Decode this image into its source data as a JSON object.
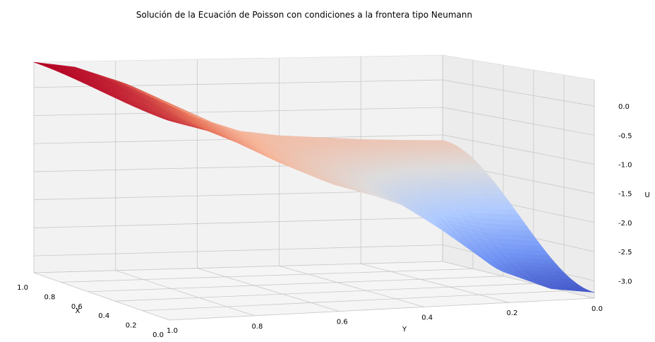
{
  "chart_data": {
    "type": "surface",
    "title": "Solución de la Ecuación de Poisson con condiciones a la frontera tipo Neumann",
    "xlabel": "X",
    "ylabel": "Y",
    "zlabel": "U",
    "x_ticks": [
      "1.0",
      "0.8",
      "0.6",
      "0.4",
      "0.2",
      "0.0"
    ],
    "y_ticks": [
      "1.0",
      "0.8",
      "0.6",
      "0.4",
      "0.2",
      "0.0"
    ],
    "z_ticks": [
      "0.0",
      "-0.5",
      "-1.0",
      "-1.5",
      "-2.0",
      "-2.5",
      "-3.0"
    ],
    "xlim": [
      0,
      1
    ],
    "ylim": [
      0,
      1
    ],
    "zlim": [
      -3.3,
      0.45
    ],
    "colormap": "coolwarm",
    "colormap_stops": [
      "#3b4cc0",
      "#7396f5",
      "#b0cbff",
      "#dddcdc",
      "#f6b69a",
      "#e8765c",
      "#b40426"
    ],
    "grid": true,
    "surface_profile": {
      "y": [
        1.0,
        0.9,
        0.8,
        0.7,
        0.6,
        0.5,
        0.4,
        0.3,
        0.2,
        0.1,
        0.0
      ],
      "u_x0": [
        0.25,
        0.0,
        -0.35,
        -0.75,
        -1.1,
        -1.35,
        -1.65,
        -2.2,
        -2.8,
        -3.1,
        -3.2
      ],
      "u_x1": [
        0.45,
        0.35,
        0.1,
        -0.25,
        -0.6,
        -0.85,
        -0.95,
        -1.0,
        -1.05,
        -1.08,
        -1.1
      ]
    }
  }
}
